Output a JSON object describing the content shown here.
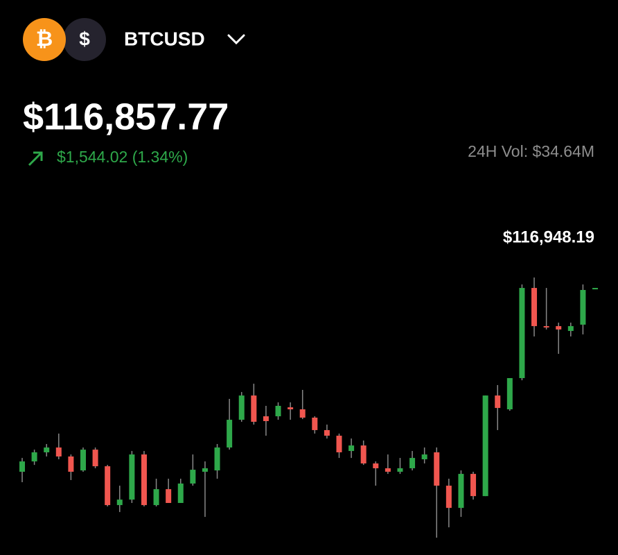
{
  "header": {
    "base_icon": "₿",
    "quote_icon": "$",
    "ticker": "BTCUSD"
  },
  "price": "$116,857.77",
  "change": "$1,544.02 (1.34%)",
  "volume": "24H Vol: $34.64M",
  "chart_data": {
    "type": "candlestick",
    "high_label": "$116,948.19",
    "up_color": "#2ea84a",
    "down_color": "#f0564f",
    "open": [
      115218,
      115310,
      115391,
      115434,
      115354,
      115230,
      115415,
      115267,
      114921,
      114970,
      115372,
      114921,
      115063,
      114940,
      115113,
      115218,
      115230,
      115434,
      115681,
      115897,
      115712,
      115712,
      115792,
      115774,
      115700,
      115589,
      115539,
      115403,
      115452,
      115292,
      115249,
      115218,
      115249,
      115329,
      115391,
      115094,
      114896,
      115199,
      115001,
      115897,
      115774,
      116052,
      116855,
      116515,
      116515,
      116472,
      116528,
      116843
    ],
    "high": [
      115341,
      115415,
      115465,
      115558,
      115372,
      115434,
      115434,
      115279,
      115094,
      115403,
      115403,
      115156,
      115156,
      115156,
      115372,
      115310,
      115465,
      115867,
      115928,
      116002,
      115805,
      115836,
      115836,
      115947,
      115712,
      115638,
      115558,
      115514,
      115496,
      115310,
      115372,
      115341,
      115403,
      115434,
      115434,
      115156,
      115230,
      115218,
      115897,
      115990,
      116052,
      116886,
      116948,
      116855,
      116546,
      116546,
      116886,
      116855
    ],
    "low": [
      115125,
      115279,
      115354,
      115329,
      115144,
      115218,
      115249,
      114909,
      114859,
      114940,
      114909,
      114909,
      114940,
      114940,
      115094,
      114816,
      115156,
      115415,
      115663,
      115638,
      115539,
      115681,
      115681,
      115687,
      115558,
      115514,
      115341,
      115341,
      115279,
      115094,
      115199,
      115199,
      115230,
      115292,
      114631,
      114723,
      114816,
      114970,
      115001,
      115589,
      115761,
      116033,
      116423,
      116485,
      116268,
      116423,
      116441,
      116843
    ],
    "close": [
      115310,
      115391,
      115434,
      115354,
      115218,
      115415,
      115267,
      114921,
      114970,
      115372,
      114921,
      115063,
      114940,
      115113,
      115236,
      115249,
      115434,
      115681,
      115897,
      115663,
      115669,
      115805,
      115774,
      115700,
      115589,
      115539,
      115391,
      115452,
      115292,
      115249,
      115218,
      115249,
      115341,
      115372,
      115094,
      114896,
      115199,
      115001,
      115897,
      115786,
      116052,
      116855,
      116515,
      116503,
      116485,
      116515,
      116837,
      116855
    ]
  }
}
